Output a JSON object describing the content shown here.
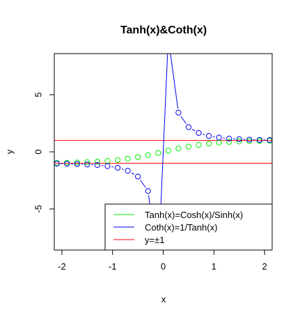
{
  "chart_data": {
    "type": "line",
    "title": "Tanh(x)&Coth(x)",
    "xlabel": "x",
    "ylabel": "y",
    "xlim": [
      -2.15,
      2.15
    ],
    "ylim": [
      -8.6,
      8.6
    ],
    "xticks": [
      -2,
      -1,
      0,
      1,
      2
    ],
    "yticks": [
      -5,
      0,
      5
    ],
    "xtick_labels": [
      "-2",
      "-1",
      "0",
      "1",
      "2"
    ],
    "ytick_labels": [
      "-5",
      "0",
      "5"
    ],
    "legend_position": "bottom-right",
    "series": [
      {
        "name": "Tanh(x)=Cosh(x)/Sinh(x)",
        "color": "#00ee00",
        "marker": "circle",
        "x": [
          -2.1,
          -1.9,
          -1.7,
          -1.5,
          -1.3,
          -1.1,
          -0.9,
          -0.7,
          -0.5,
          -0.3,
          -0.1,
          0.1,
          0.3,
          0.5,
          0.7,
          0.9,
          1.1,
          1.3,
          1.5,
          1.7,
          1.9,
          2.1
        ],
        "y": [
          -0.97,
          -0.956,
          -0.935,
          -0.905,
          -0.862,
          -0.8,
          -0.716,
          -0.604,
          -0.462,
          -0.291,
          -0.1,
          0.1,
          0.291,
          0.462,
          0.604,
          0.716,
          0.8,
          0.862,
          0.905,
          0.935,
          0.956,
          0.97
        ]
      },
      {
        "name": "Coth(x)=1/Tanh(x)",
        "color": "#0000ee",
        "marker": "circle",
        "line": true,
        "x": [
          -2.1,
          -1.9,
          -1.7,
          -1.5,
          -1.3,
          -1.1,
          -0.9,
          -0.7,
          -0.5,
          -0.3,
          -0.1,
          0.1,
          0.3,
          0.5,
          0.7,
          0.9,
          1.1,
          1.3,
          1.5,
          1.7,
          1.9,
          2.1
        ],
        "y": [
          -1.03,
          -1.046,
          -1.07,
          -1.105,
          -1.16,
          -1.249,
          -1.396,
          -1.655,
          -2.164,
          -3.433,
          -10.03,
          10.03,
          3.433,
          2.164,
          1.655,
          1.396,
          1.249,
          1.16,
          1.105,
          1.07,
          1.046,
          1.03
        ]
      },
      {
        "name": "y=±1",
        "color": "#ff0000",
        "hlines": [
          1,
          -1
        ]
      }
    ]
  }
}
